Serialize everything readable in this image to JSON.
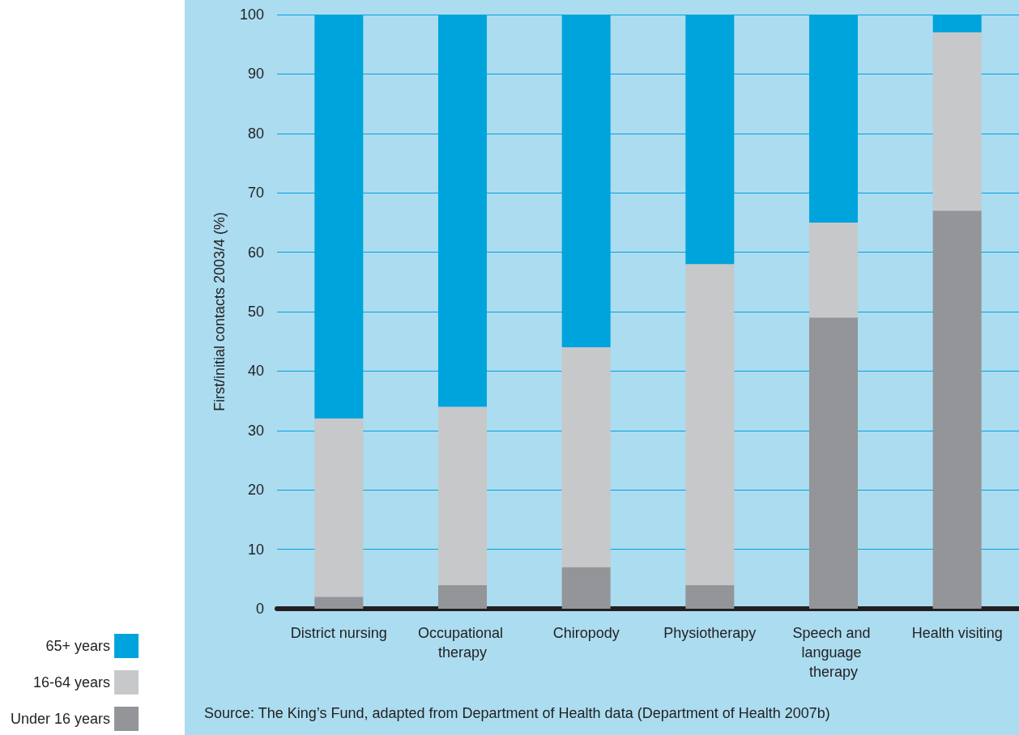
{
  "chart_data": {
    "type": "bar",
    "stacked": true,
    "ylabel": "First/initial contacts 2003/4 (%)",
    "categories": [
      "District nursing",
      "Occupational therapy",
      "Chiropody",
      "Physiotherapy",
      "Speech and language therapy",
      "Health visiting"
    ],
    "series": [
      {
        "name": "Under 16 years",
        "color": "#939598",
        "values": [
          2,
          4,
          7,
          4,
          49,
          67
        ]
      },
      {
        "name": "16-64 years",
        "color": "#c7c8ca",
        "values": [
          30,
          30,
          37,
          54,
          16,
          30
        ]
      },
      {
        "name": "65+ years",
        "color": "#00a4dc",
        "values": [
          68,
          66,
          56,
          42,
          35,
          3
        ]
      }
    ],
    "ylim": [
      0,
      100
    ],
    "yticks": [
      0,
      10,
      20,
      30,
      40,
      50,
      60,
      70,
      80,
      90,
      100
    ],
    "grid": "y",
    "legend": "bottom left",
    "annotations": [
      "Source: The King’s Fund, adapted from Department of Health data (Department of Health 2007b)"
    ]
  }
}
